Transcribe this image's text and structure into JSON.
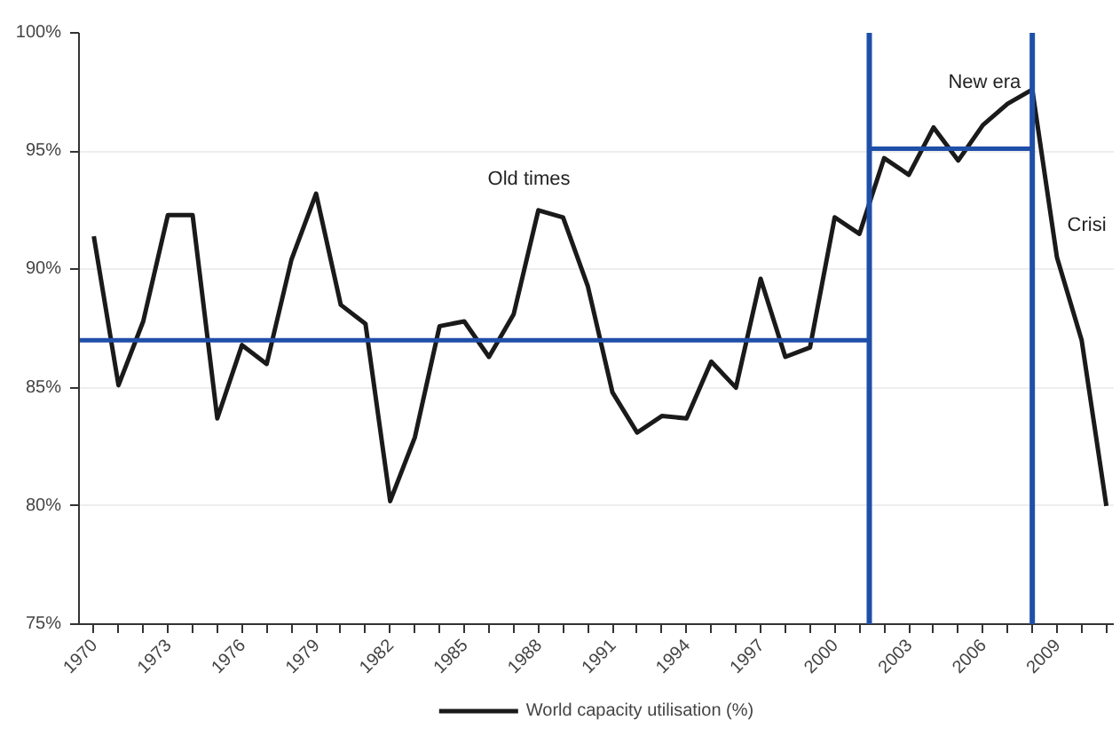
{
  "chart_data": {
    "type": "line",
    "x": [
      1970,
      1971,
      1972,
      1973,
      1974,
      1975,
      1976,
      1977,
      1978,
      1979,
      1980,
      1981,
      1982,
      1983,
      1984,
      1985,
      1986,
      1987,
      1988,
      1989,
      1990,
      1991,
      1992,
      1993,
      1994,
      1995,
      1996,
      1997,
      1998,
      1999,
      2000,
      2001,
      2002,
      2003,
      2004,
      2005,
      2006,
      2007,
      2008,
      2009,
      2010,
      2011
    ],
    "series": [
      {
        "name": "World capacity utilisation (%)",
        "color": "#1a1a1a",
        "values": [
          91.4,
          85.1,
          87.8,
          92.3,
          92.3,
          83.7,
          86.8,
          86.0,
          90.4,
          93.2,
          88.5,
          87.7,
          80.2,
          82.9,
          87.6,
          87.8,
          86.3,
          88.1,
          92.5,
          92.2,
          89.3,
          84.8,
          83.1,
          83.8,
          83.7,
          86.1,
          85.0,
          89.6,
          86.3,
          86.7,
          92.2,
          91.5,
          94.7,
          94.0,
          96.0,
          94.6,
          96.1,
          97.0,
          97.6,
          90.5,
          87.0,
          80.0
        ]
      },
      {
        "type": "line",
        "color": "#1f4fa8",
        "x": [
          1969.4,
          2001.4
        ],
        "values": [
          87.0,
          87.0
        ]
      },
      {
        "type": "line",
        "color": "#1f4fa8",
        "x": [
          2001.4,
          2008
        ],
        "values": [
          95.1,
          95.1
        ]
      }
    ],
    "ref_lines": [
      {
        "axis": "x",
        "value": 2001.4,
        "color": "#1f4fa8"
      },
      {
        "axis": "x",
        "value": 2008,
        "color": "#1f4fa8"
      }
    ],
    "annotations": [
      "Old times",
      "New era",
      "Crisi"
    ],
    "xlim": [
      1969.4,
      2011.3
    ],
    "xticks": [
      {
        "value": 1970,
        "label": "1970"
      },
      {
        "value": 1971,
        "label": null
      },
      {
        "value": 1972,
        "label": null
      },
      {
        "value": 1973,
        "label": "1973"
      },
      {
        "value": 1974,
        "label": null
      },
      {
        "value": 1975,
        "label": null
      },
      {
        "value": 1976,
        "label": "1976"
      },
      {
        "value": 1977,
        "label": null
      },
      {
        "value": 1978,
        "label": null
      },
      {
        "value": 1979,
        "label": "1979"
      },
      {
        "value": 1980,
        "label": null
      },
      {
        "value": 1981,
        "label": null
      },
      {
        "value": 1982,
        "label": "1982"
      },
      {
        "value": 1983,
        "label": null
      },
      {
        "value": 1984,
        "label": null
      },
      {
        "value": 1985,
        "label": "1985"
      },
      {
        "value": 1986,
        "label": null
      },
      {
        "value": 1987,
        "label": null
      },
      {
        "value": 1988,
        "label": "1988"
      },
      {
        "value": 1989,
        "label": null
      },
      {
        "value": 1990,
        "label": null
      },
      {
        "value": 1991,
        "label": "1991"
      },
      {
        "value": 1992,
        "label": null
      },
      {
        "value": 1993,
        "label": null
      },
      {
        "value": 1994,
        "label": "1994"
      },
      {
        "value": 1995,
        "label": null
      },
      {
        "value": 1996,
        "label": null
      },
      {
        "value": 1997,
        "label": "1997"
      },
      {
        "value": 1998,
        "label": null
      },
      {
        "value": 1999,
        "label": null
      },
      {
        "value": 2000,
        "label": "2000"
      },
      {
        "value": 2001,
        "label": null
      },
      {
        "value": 2002,
        "label": null
      },
      {
        "value": 2003,
        "label": "2003"
      },
      {
        "value": 2004,
        "label": null
      },
      {
        "value": 2005,
        "label": null
      },
      {
        "value": 2006,
        "label": "2006"
      },
      {
        "value": 2007,
        "label": null
      },
      {
        "value": 2008,
        "label": null
      },
      {
        "value": 2009,
        "label": "2009"
      },
      {
        "value": 2010,
        "label": null
      },
      {
        "value": 2011,
        "label": null
      }
    ],
    "ylim": [
      75,
      100
    ],
    "yticks": [
      {
        "value": 75,
        "label": "75%"
      },
      {
        "value": 80,
        "label": "80%"
      },
      {
        "value": 85,
        "label": "85%"
      },
      {
        "value": 90,
        "label": "90%"
      },
      {
        "value": 95,
        "label": "95%"
      },
      {
        "value": 100,
        "label": "100%"
      }
    ],
    "grid": "y",
    "legend": "bottom",
    "marker": "none",
    "line_style": "solid"
  }
}
